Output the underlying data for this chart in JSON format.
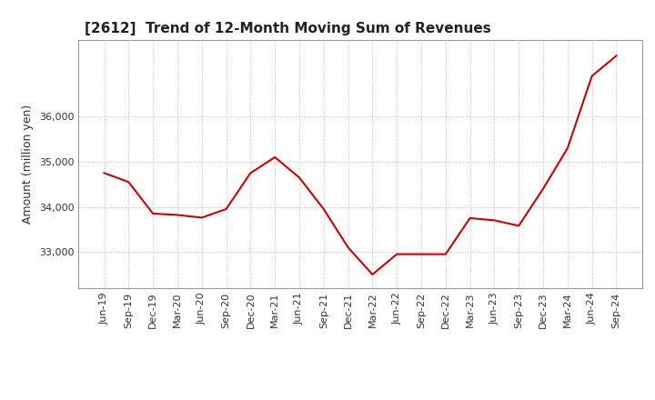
{
  "title": "[2612]  Trend of 12-Month Moving Sum of Revenues",
  "ylabel": "Amount (million yen)",
  "line_color": "#cc0000",
  "background_color": "#ffffff",
  "plot_bg_color": "#ffffff",
  "grid_color": "#bbbbbb",
  "labels": [
    "Jun-19",
    "Sep-19",
    "Dec-19",
    "Mar-20",
    "Jun-20",
    "Sep-20",
    "Dec-20",
    "Mar-21",
    "Jun-21",
    "Sep-21",
    "Dec-21",
    "Mar-22",
    "Jun-22",
    "Sep-22",
    "Dec-22",
    "Mar-23",
    "Jun-23",
    "Sep-23",
    "Dec-23",
    "Mar-24",
    "Jun-24",
    "Sep-24"
  ],
  "values": [
    34750,
    34550,
    33850,
    33820,
    33760,
    33950,
    34750,
    35100,
    34650,
    33950,
    33100,
    32500,
    32950,
    32950,
    32950,
    33750,
    33700,
    33580,
    34400,
    35300,
    36900,
    37350
  ],
  "yticks": [
    33000,
    34000,
    35000,
    36000
  ],
  "ylim": [
    32200,
    37700
  ],
  "title_fontsize": 11,
  "axis_fontsize": 9,
  "tick_fontsize": 8,
  "linewidth": 1.5
}
